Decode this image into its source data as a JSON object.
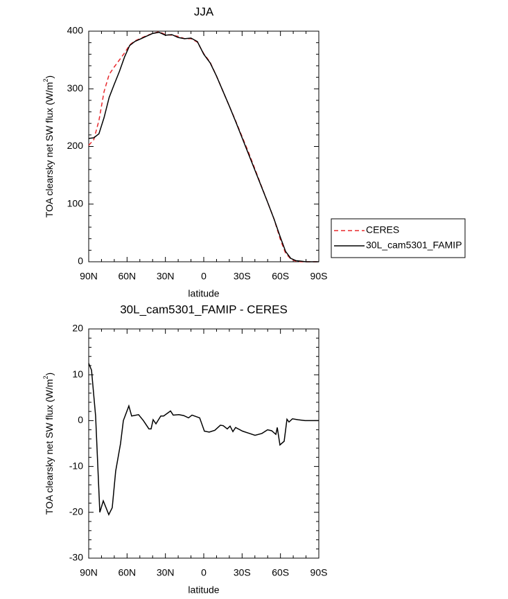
{
  "chart_data": [
    {
      "type": "line",
      "title": "JJA",
      "xlabel": "latitude",
      "ylabel_parts": [
        "TOA clearsky net SW flux (W/m",
        "2",
        ")"
      ],
      "legend": "right",
      "xlim": [
        90,
        -90
      ],
      "xticks": [
        {
          "value": 90,
          "label": "90N"
        },
        {
          "value": 60,
          "label": "60N"
        },
        {
          "value": 30,
          "label": "30N"
        },
        0,
        {
          "value": -30,
          "label": "30S"
        },
        {
          "value": -60,
          "label": "60S"
        },
        {
          "value": -90,
          "label": "90S"
        }
      ],
      "ylim": [
        0,
        400
      ],
      "yticks": [
        0,
        100,
        200,
        300,
        400
      ],
      "x": [
        90,
        86,
        82,
        78,
        74,
        70,
        66,
        62,
        58,
        54,
        50,
        45,
        40,
        35,
        30,
        25,
        20,
        15,
        10,
        5,
        0,
        -5,
        -10,
        -15,
        -20,
        -25,
        -30,
        -35,
        -40,
        -45,
        -50,
        -55,
        -60,
        -64,
        -68,
        -72,
        -76,
        -80,
        -85,
        -90
      ],
      "series": [
        {
          "name": "CERES",
          "color": "#e8282c",
          "dashed": true,
          "values": [
            202,
            212,
            245,
            295,
            325,
            338,
            350,
            362,
            376,
            383,
            387,
            392,
            396,
            399,
            394,
            393,
            391,
            387,
            387,
            381,
            361,
            346,
            322,
            296,
            270,
            244,
            217,
            190,
            161,
            132,
            103,
            74,
            38,
            15,
            5,
            1,
            0,
            0,
            0,
            0
          ]
        },
        {
          "name": "30L_cam5301_FAMIP",
          "color": "#000000",
          "dashed": false,
          "values": [
            214,
            215,
            222,
            250,
            285,
            308,
            330,
            355,
            375,
            382,
            386,
            391,
            396,
            398,
            393,
            394,
            389,
            387,
            388,
            382,
            360,
            345,
            322,
            296,
            270,
            243,
            215,
            187,
            159,
            131,
            103,
            74,
            42,
            18,
            6,
            2,
            1,
            0,
            0,
            0
          ]
        }
      ]
    },
    {
      "type": "line",
      "title": "30L_cam5301_FAMIP - CERES",
      "xlabel": "latitude",
      "ylabel_parts": [
        "TOA clearsky net SW flux (W/m",
        "2",
        ")"
      ],
      "xlim": [
        90,
        -90
      ],
      "xticks": [
        {
          "value": 90,
          "label": "90N"
        },
        {
          "value": 60,
          "label": "60N"
        },
        {
          "value": 30,
          "label": "30N"
        },
        0,
        {
          "value": -30,
          "label": "30S"
        },
        {
          "value": -60,
          "label": "60S"
        },
        {
          "value": -90,
          "label": "90S"
        }
      ],
      "ylim": [
        -30,
        20
      ],
      "yticks": [
        -30,
        -20,
        -10,
        0,
        10,
        20
      ],
      "x": [
        90,
        87.8,
        84.6,
        81.3,
        78.6,
        74.3,
        71.6,
        68.9,
        65.1,
        62.9,
        58.6,
        56.4,
        51,
        47.2,
        42.9,
        41.2,
        39.6,
        37.4,
        33.6,
        31.4,
        26,
        23.9,
        19.5,
        15.7,
        11.9,
        9.2,
        3.2,
        -0.5,
        -4.3,
        -8.7,
        -13,
        -15.2,
        -18.4,
        -20.6,
        -22.8,
        -24.9,
        -30.4,
        -35.8,
        -40.1,
        -45.5,
        -49.9,
        -53.1,
        -56.4,
        -57.5,
        -59.6,
        -62.9,
        -65.1,
        -66.7,
        -69.4,
        -73.7,
        -79.2,
        -90
      ],
      "series": [
        {
          "color": "#000000",
          "dashed": false,
          "values": [
            12.5,
            11,
            1,
            -20,
            -17.5,
            -20.5,
            -19,
            -11,
            -5,
            0,
            3.2,
            1,
            1.3,
            0,
            -1.8,
            -1.8,
            0.2,
            -0.7,
            1,
            1,
            2.1,
            1.2,
            1.3,
            1.1,
            0.6,
            1.2,
            0.6,
            -2.3,
            -2.5,
            -2.1,
            -1,
            -1.1,
            -1.8,
            -1.2,
            -2.4,
            -1.5,
            -2.3,
            -2.8,
            -3.2,
            -2.8,
            -2,
            -2.2,
            -3,
            -1.5,
            -5.3,
            -4.5,
            0.3,
            -0.3,
            0.4,
            0.2,
            0,
            0
          ]
        }
      ]
    }
  ]
}
